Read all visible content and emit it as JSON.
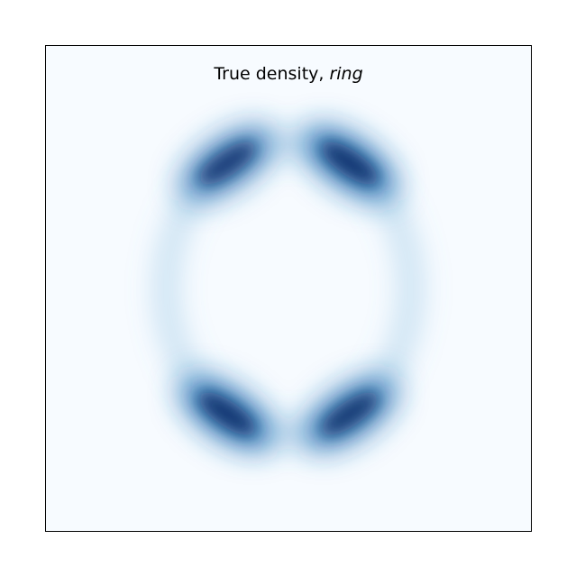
{
  "chart_data": {
    "type": "heatmap",
    "title": "True density, ",
    "title_emphasis": "ring",
    "xlabel": "",
    "ylabel": "",
    "colormap": "Blues",
    "axes_ticks": false,
    "grid": false,
    "background_color": "#f7fbff",
    "peak_color": "#08306b",
    "ring": {
      "center": [
        0.0,
        0.0
      ],
      "radius_x": 1.0,
      "radius_y": 1.18,
      "clusters": [
        {
          "angle_deg": 120,
          "intensity": 0.9
        },
        {
          "angle_deg": 60,
          "intensity": 1.0
        },
        {
          "angle_deg": 240,
          "intensity": 1.0
        },
        {
          "angle_deg": 300,
          "intensity": 0.95
        }
      ]
    }
  }
}
